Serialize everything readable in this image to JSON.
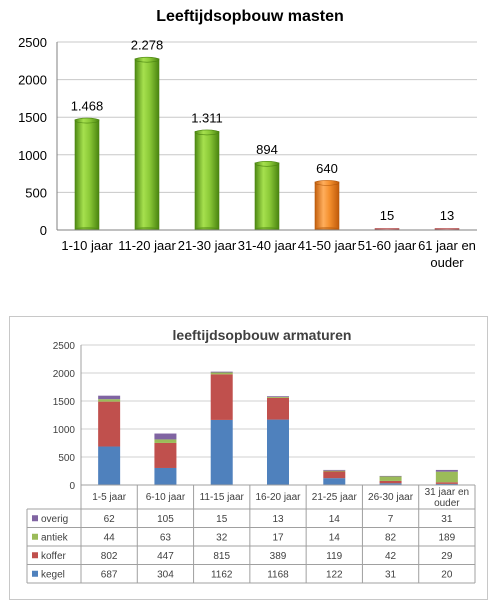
{
  "chart_data": [
    {
      "type": "bar",
      "title": "Leeftijdsopbouw masten",
      "categories": [
        "1-10 jaar",
        "11-20 jaar",
        "21-30 jaar",
        "31-40 jaar",
        "41-50 jaar",
        "51-60 jaar",
        "61 jaar en ouder"
      ],
      "values": [
        1468,
        2278,
        1311,
        894,
        640,
        15,
        13
      ],
      "data_labels": [
        "1.468",
        "2.278",
        "1.311",
        "894",
        "640",
        "15",
        "13"
      ],
      "ylim": [
        0,
        2500
      ],
      "yticks": [
        0,
        500,
        1000,
        1500,
        2000,
        2500
      ],
      "grid": true,
      "legend": "none",
      "colors": [
        "#8ccc3c",
        "#8ccc3c",
        "#8ccc3c",
        "#8ccc3c",
        "#f08c3c",
        "#e07070",
        "#e07070"
      ]
    },
    {
      "type": "bar",
      "stacked": true,
      "title": "leeftijdsopbouw armaturen",
      "categories": [
        "1-5 jaar",
        "6-10 jaar",
        "11-15 jaar",
        "16-20 jaar",
        "21-25 jaar",
        "26-30 jaar",
        "31 jaar en ouder"
      ],
      "ylim": [
        0,
        2500
      ],
      "yticks": [
        0,
        500,
        1000,
        1500,
        2000,
        2500
      ],
      "grid": true,
      "legend": "data-table",
      "series": [
        {
          "name": "kegel",
          "values": [
            687,
            304,
            1162,
            1168,
            122,
            31,
            20
          ],
          "color": "#4f81bd"
        },
        {
          "name": "koffer",
          "values": [
            802,
            447,
            815,
            389,
            119,
            42,
            29
          ],
          "color": "#c0504d"
        },
        {
          "name": "antiek",
          "values": [
            44,
            63,
            32,
            17,
            14,
            82,
            189
          ],
          "color": "#9bbb59"
        },
        {
          "name": "overig",
          "values": [
            62,
            105,
            15,
            13,
            14,
            7,
            31
          ],
          "color": "#8064a2"
        }
      ]
    }
  ]
}
